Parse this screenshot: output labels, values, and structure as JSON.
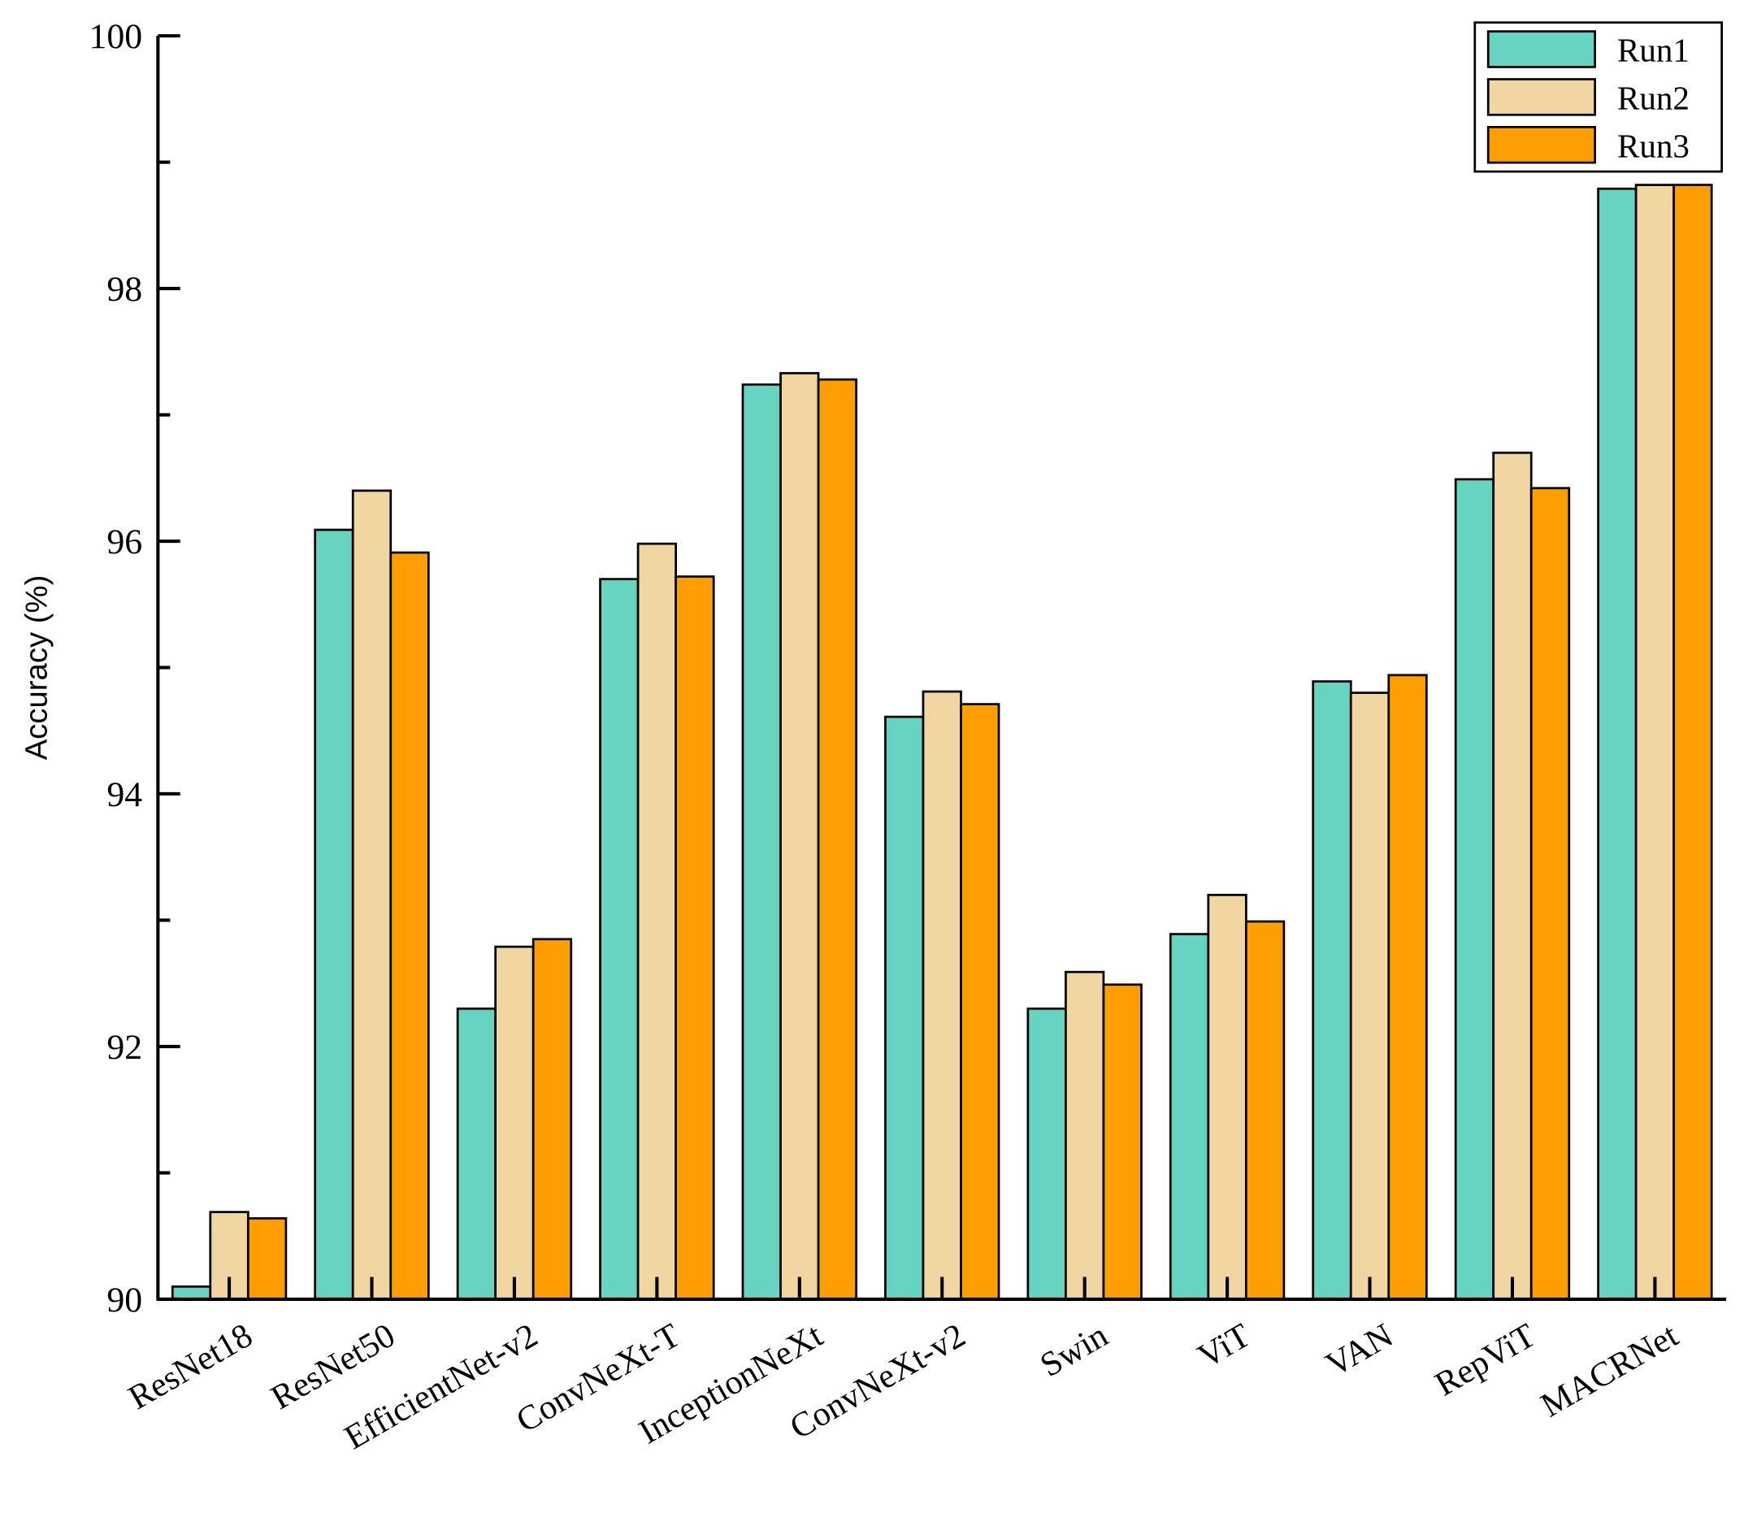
{
  "chart_data": {
    "type": "bar",
    "y_label": "Accuracy (%)",
    "categories": [
      "ResNet18",
      "ResNet50",
      "EfficientNet-v2",
      "ConvNeXt-T",
      "InceptionNeXt",
      "ConvNeXt-v2",
      "Swin",
      "ViT",
      "VAN",
      "RepViT",
      "MACRNet"
    ],
    "series": [
      {
        "name": "Run1",
        "color": "#66d4c1",
        "values": [
          90.1,
          96.09,
          92.3,
          95.7,
          97.24,
          94.61,
          92.3,
          92.89,
          94.89,
          96.49,
          98.79
        ]
      },
      {
        "name": "Run2",
        "color": "#f2d6a2",
        "values": [
          90.69,
          96.4,
          92.79,
          95.98,
          97.33,
          94.81,
          92.59,
          93.2,
          94.8,
          96.7,
          98.82
        ]
      },
      {
        "name": "Run3",
        "color": "#ff9e00",
        "values": [
          90.64,
          95.91,
          92.85,
          95.72,
          97.28,
          94.71,
          92.49,
          92.99,
          94.94,
          96.42,
          98.82
        ]
      }
    ],
    "ylim": [
      90,
      100
    ],
    "yticks": [
      90,
      92,
      94,
      96,
      98,
      100
    ],
    "yminorticks": [
      91,
      93,
      95,
      97,
      99
    ],
    "legend": "upper right"
  }
}
